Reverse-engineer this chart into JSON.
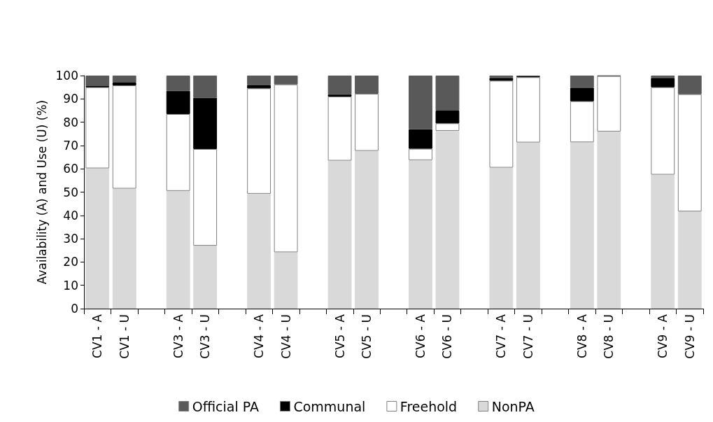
{
  "chart_data": {
    "type": "bar",
    "stacked": true,
    "ylabel": "Availability (A) and Use (U) (%)",
    "categories": [
      "CV1 - A",
      "CV1 - U",
      null,
      "CV3 - A",
      "CV3 - U",
      null,
      "CV4 - A",
      "CV4 - U",
      null,
      "CV5 - A",
      "CV5 - U",
      null,
      "CV6 - A",
      "CV6 - U",
      null,
      "CV7 - A",
      "CV7 - U",
      null,
      "CV8 - A",
      "CV8 - U",
      null,
      "CV9 - A",
      "CV9 - U"
    ],
    "series": [
      {
        "name": "NonPA",
        "color": "#d9d9d9",
        "values": [
          60.2,
          51.5,
          null,
          50.5,
          27,
          null,
          49.3,
          24.2,
          null,
          63.5,
          67.7,
          null,
          63.7,
          76.3,
          null,
          60.5,
          71.3,
          null,
          71.4,
          76,
          null,
          57.5,
          41.7
        ]
      },
      {
        "name": "Freehold",
        "color": "#ffffff",
        "values": [
          34.8,
          44.3,
          null,
          33,
          41.5,
          null,
          45.2,
          72,
          null,
          27.5,
          24.5,
          null,
          4.9,
          3.2,
          null,
          37.3,
          28,
          null,
          17.6,
          23.8,
          null,
          37.5,
          50.3
        ]
      },
      {
        "name": "Communal",
        "color": "#000000",
        "values": [
          0.5,
          1.2,
          null,
          10,
          22,
          null,
          1.5,
          0,
          null,
          1,
          0,
          null,
          8.4,
          5.5,
          null,
          1.2,
          0.4,
          null,
          5.8,
          0,
          null,
          4,
          0
        ]
      },
      {
        "name": "Official PA",
        "color": "#595959",
        "values": [
          4.5,
          3,
          null,
          6.5,
          9.5,
          null,
          4,
          3.8,
          null,
          8,
          7.8,
          null,
          23,
          15,
          null,
          1,
          0.3,
          null,
          5.2,
          0.2,
          null,
          1,
          8
        ]
      }
    ],
    "ylim": [
      0,
      100
    ],
    "yticks": [
      0,
      10,
      20,
      30,
      40,
      50,
      60,
      70,
      80,
      90,
      100
    ],
    "grid": false,
    "legend": "bottom"
  }
}
